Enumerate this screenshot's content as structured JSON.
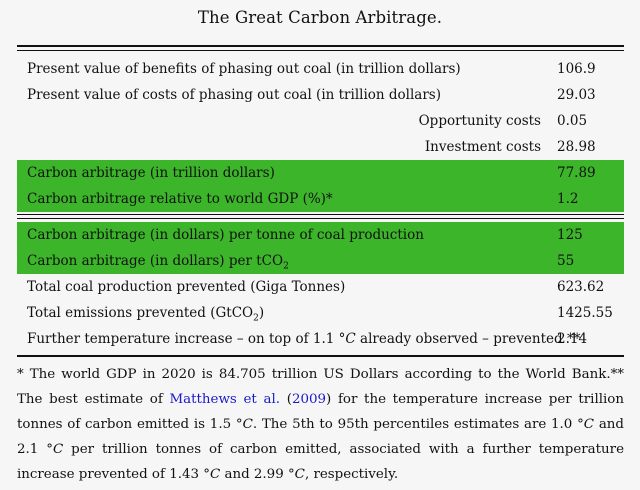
{
  "title": "The Great Carbon Arbitrage.",
  "rows": [
    {
      "label": "Present value of benefits of phasing out coal (in trillion dollars)",
      "value": "106.9"
    },
    {
      "label": "Present value of costs of phasing out coal (in trillion dollars)",
      "value": "29.03"
    },
    {
      "label": "Opportunity costs",
      "value": "0.05"
    },
    {
      "label": "Investment costs",
      "value": "28.98"
    },
    {
      "label": "Carbon arbitrage (in trillion dollars)",
      "value": "77.89"
    },
    {
      "label": "Carbon arbitrage relative to world GDP (%)*",
      "value": "1.2"
    },
    {
      "label": "Carbon arbitrage (in dollars) per tonne of coal production",
      "value": "125"
    },
    {
      "label_pre": "Carbon arbitrage (in dollars) per tCO",
      "label_sub": "2",
      "value": "55"
    },
    {
      "label": "Total coal production prevented (Giga Tonnes)",
      "value": "623.62"
    },
    {
      "label_pre": "Total emissions prevented (GtCO",
      "label_sub": "2",
      "label_post": ")",
      "value": "1425.55"
    },
    {
      "label_pre": "Further temperature increase – on top of 1.1 ",
      "label_unit": "°C",
      "label_post": " already observed – prevented **",
      "value": "2.14"
    }
  ],
  "highlight_color": "#3cb52a",
  "footnote": {
    "part1": "* The world GDP in 2020 is 84.705 trillion US Dollars according to the World Bank.** The best estimate of ",
    "link_author": "Matthews et al.",
    "paren_open": " (",
    "link_year": "2009",
    "part2": ") for the temperature increase per trillion tonnes of carbon emitted is 1.5 ",
    "unit": "°C",
    "part3": ". The 5th to 95th percentiles estimates are 1.0 ",
    "part4": " and 2.1 ",
    "part5": " per trillion tonnes of carbon emitted, associated with a further temperature increase prevented of 1.43 ",
    "part6": " and 2.99 ",
    "part7": ", respectively."
  }
}
